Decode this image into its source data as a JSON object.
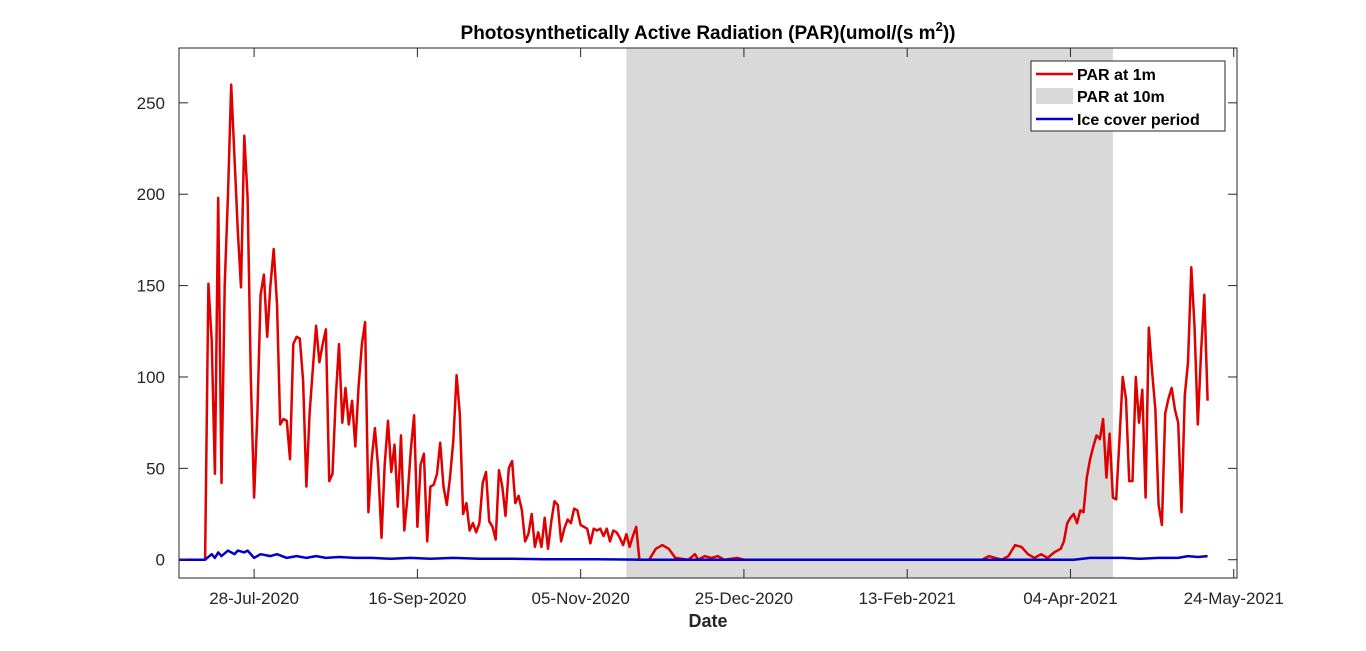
{
  "chart_data": {
    "type": "line",
    "title": "Photosynthetically Active Radiation (PAR)(umol/(s m",
    "title_superscript": "2",
    "title_suffix": "))",
    "xlabel": "Date",
    "ylabel": "",
    "x_ticks": [
      "28-Jul-2020",
      "16-Sep-2020",
      "05-Nov-2020",
      "25-Dec-2020",
      "13-Feb-2021",
      "04-Apr-2021",
      "24-May-2021"
    ],
    "xlim": [
      "2020-07-05",
      "2021-05-25"
    ],
    "ylim": [
      -10,
      280
    ],
    "y_ticks": [
      0,
      50,
      100,
      150,
      200,
      250
    ],
    "grid": false,
    "legend": {
      "placement": "top-right",
      "entries": [
        "PAR at 1m",
        "PAR at 10m",
        "Ice cover period"
      ]
    },
    "colors": {
      "par_1m": "#e00000",
      "par_10m": "#d9d9d9",
      "ice_cover": "#0000cc",
      "axis": "#262626"
    },
    "shaded_period": {
      "start": "2020-11-19",
      "end": "2021-04-17",
      "fill": "#d9d9d9"
    },
    "series": [
      {
        "name": "PAR at 1m",
        "color": "#e00000",
        "points": [
          [
            "2020-07-13",
            0
          ],
          [
            "2020-07-14",
            151
          ],
          [
            "2020-07-15",
            120
          ],
          [
            "2020-07-16",
            47
          ],
          [
            "2020-07-17",
            198
          ],
          [
            "2020-07-18",
            42
          ],
          [
            "2020-07-19",
            150
          ],
          [
            "2020-07-20",
            200
          ],
          [
            "2020-07-21",
            260
          ],
          [
            "2020-07-22",
            220
          ],
          [
            "2020-07-23",
            180
          ],
          [
            "2020-07-24",
            149
          ],
          [
            "2020-07-25",
            232
          ],
          [
            "2020-07-26",
            198
          ],
          [
            "2020-07-27",
            100
          ],
          [
            "2020-07-28",
            34
          ],
          [
            "2020-07-29",
            80
          ],
          [
            "2020-07-30",
            145
          ],
          [
            "2020-07-31",
            156
          ],
          [
            "2020-08-01",
            122
          ],
          [
            "2020-08-02",
            150
          ],
          [
            "2020-08-03",
            170
          ],
          [
            "2020-08-04",
            140
          ],
          [
            "2020-08-05",
            74
          ],
          [
            "2020-08-06",
            77
          ],
          [
            "2020-08-07",
            76
          ],
          [
            "2020-08-08",
            55
          ],
          [
            "2020-08-09",
            118
          ],
          [
            "2020-08-10",
            122
          ],
          [
            "2020-08-11",
            121
          ],
          [
            "2020-08-12",
            98
          ],
          [
            "2020-08-13",
            40
          ],
          [
            "2020-08-14",
            80
          ],
          [
            "2020-08-15",
            105
          ],
          [
            "2020-08-16",
            128
          ],
          [
            "2020-08-17",
            108
          ],
          [
            "2020-08-18",
            118
          ],
          [
            "2020-08-19",
            126
          ],
          [
            "2020-08-20",
            43
          ],
          [
            "2020-08-21",
            47
          ],
          [
            "2020-08-22",
            88
          ],
          [
            "2020-08-23",
            118
          ],
          [
            "2020-08-24",
            75
          ],
          [
            "2020-08-25",
            94
          ],
          [
            "2020-08-26",
            74
          ],
          [
            "2020-08-27",
            87
          ],
          [
            "2020-08-28",
            62
          ],
          [
            "2020-08-29",
            95
          ],
          [
            "2020-08-30",
            118
          ],
          [
            "2020-08-31",
            130
          ],
          [
            "2020-09-01",
            26
          ],
          [
            "2020-09-02",
            55
          ],
          [
            "2020-09-03",
            72
          ],
          [
            "2020-09-04",
            50
          ],
          [
            "2020-09-05",
            12
          ],
          [
            "2020-09-06",
            52
          ],
          [
            "2020-09-07",
            76
          ],
          [
            "2020-09-08",
            48
          ],
          [
            "2020-09-09",
            63
          ],
          [
            "2020-09-10",
            29
          ],
          [
            "2020-09-11",
            68
          ],
          [
            "2020-09-12",
            16
          ],
          [
            "2020-09-13",
            35
          ],
          [
            "2020-09-14",
            60
          ],
          [
            "2020-09-15",
            79
          ],
          [
            "2020-09-16",
            18
          ],
          [
            "2020-09-17",
            52
          ],
          [
            "2020-09-18",
            58
          ],
          [
            "2020-09-19",
            10
          ],
          [
            "2020-09-20",
            40
          ],
          [
            "2020-09-21",
            41
          ],
          [
            "2020-09-22",
            47
          ],
          [
            "2020-09-23",
            64
          ],
          [
            "2020-09-24",
            40
          ],
          [
            "2020-09-25",
            30
          ],
          [
            "2020-09-26",
            45
          ],
          [
            "2020-09-27",
            65
          ],
          [
            "2020-09-28",
            101
          ],
          [
            "2020-09-29",
            80
          ],
          [
            "2020-09-30",
            25
          ],
          [
            "2020-10-01",
            31
          ],
          [
            "2020-10-02",
            16
          ],
          [
            "2020-10-03",
            20
          ],
          [
            "2020-10-04",
            15
          ],
          [
            "2020-10-05",
            20
          ],
          [
            "2020-10-06",
            42
          ],
          [
            "2020-10-07",
            48
          ],
          [
            "2020-10-08",
            21
          ],
          [
            "2020-10-09",
            18
          ],
          [
            "2020-10-10",
            11
          ],
          [
            "2020-10-11",
            49
          ],
          [
            "2020-10-12",
            40
          ],
          [
            "2020-10-13",
            24
          ],
          [
            "2020-10-14",
            50
          ],
          [
            "2020-10-15",
            54
          ],
          [
            "2020-10-16",
            31
          ],
          [
            "2020-10-17",
            35
          ],
          [
            "2020-10-18",
            27
          ],
          [
            "2020-10-19",
            10
          ],
          [
            "2020-10-20",
            14
          ],
          [
            "2020-10-21",
            25
          ],
          [
            "2020-10-22",
            7
          ],
          [
            "2020-10-23",
            15
          ],
          [
            "2020-10-24",
            7
          ],
          [
            "2020-10-25",
            23
          ],
          [
            "2020-10-26",
            6
          ],
          [
            "2020-10-27",
            21
          ],
          [
            "2020-10-28",
            32
          ],
          [
            "2020-10-29",
            30
          ],
          [
            "2020-10-30",
            10
          ],
          [
            "2020-10-31",
            17
          ],
          [
            "2020-11-01",
            22
          ],
          [
            "2020-11-02",
            20
          ],
          [
            "2020-11-03",
            28
          ],
          [
            "2020-11-04",
            27
          ],
          [
            "2020-11-05",
            19
          ],
          [
            "2020-11-06",
            18
          ],
          [
            "2020-11-07",
            17
          ],
          [
            "2020-11-08",
            9
          ],
          [
            "2020-11-09",
            17
          ],
          [
            "2020-11-10",
            16
          ],
          [
            "2020-11-11",
            17
          ],
          [
            "2020-11-12",
            13
          ],
          [
            "2020-11-13",
            17
          ],
          [
            "2020-11-14",
            10
          ],
          [
            "2020-11-15",
            16
          ],
          [
            "2020-11-16",
            15
          ],
          [
            "2020-11-17",
            12
          ],
          [
            "2020-11-18",
            8
          ],
          [
            "2020-11-19",
            14
          ],
          [
            "2020-11-20",
            7
          ],
          [
            "2020-11-21",
            13
          ],
          [
            "2020-11-22",
            18
          ],
          [
            "2020-11-23",
            0
          ],
          [
            "2020-11-26",
            0
          ],
          [
            "2020-11-28",
            6
          ],
          [
            "2020-11-30",
            8
          ],
          [
            "2020-12-02",
            6
          ],
          [
            "2020-12-04",
            1
          ],
          [
            "2020-12-08",
            0
          ],
          [
            "2020-12-10",
            3
          ],
          [
            "2020-12-11",
            0
          ],
          [
            "2020-12-13",
            2
          ],
          [
            "2020-12-15",
            1
          ],
          [
            "2020-12-17",
            2
          ],
          [
            "2020-12-19",
            0
          ],
          [
            "2020-12-23",
            1
          ],
          [
            "2020-12-25",
            0
          ],
          [
            "2021-03-08",
            0
          ],
          [
            "2021-03-10",
            2
          ],
          [
            "2021-03-12",
            1
          ],
          [
            "2021-03-14",
            0
          ],
          [
            "2021-03-16",
            2
          ],
          [
            "2021-03-18",
            8
          ],
          [
            "2021-03-20",
            7
          ],
          [
            "2021-03-22",
            3
          ],
          [
            "2021-03-24",
            1
          ],
          [
            "2021-03-26",
            3
          ],
          [
            "2021-03-28",
            1
          ],
          [
            "2021-03-30",
            4
          ],
          [
            "2021-04-01",
            6
          ],
          [
            "2021-04-02",
            10
          ],
          [
            "2021-04-03",
            20
          ],
          [
            "2021-04-04",
            23
          ],
          [
            "2021-04-05",
            25
          ],
          [
            "2021-04-06",
            20
          ],
          [
            "2021-04-07",
            27
          ],
          [
            "2021-04-08",
            26
          ],
          [
            "2021-04-09",
            45
          ],
          [
            "2021-04-10",
            55
          ],
          [
            "2021-04-11",
            62
          ],
          [
            "2021-04-12",
            68
          ],
          [
            "2021-04-13",
            66
          ],
          [
            "2021-04-14",
            77
          ],
          [
            "2021-04-15",
            45
          ],
          [
            "2021-04-16",
            69
          ],
          [
            "2021-04-17",
            34
          ],
          [
            "2021-04-18",
            33
          ],
          [
            "2021-04-19",
            65
          ],
          [
            "2021-04-20",
            100
          ],
          [
            "2021-04-21",
            88
          ],
          [
            "2021-04-22",
            43
          ],
          [
            "2021-04-23",
            43
          ],
          [
            "2021-04-24",
            100
          ],
          [
            "2021-04-25",
            75
          ],
          [
            "2021-04-26",
            93
          ],
          [
            "2021-04-27",
            34
          ],
          [
            "2021-04-28",
            127
          ],
          [
            "2021-04-29",
            103
          ],
          [
            "2021-04-30",
            82
          ],
          [
            "2021-05-01",
            30
          ],
          [
            "2021-05-02",
            19
          ],
          [
            "2021-05-03",
            80
          ],
          [
            "2021-05-04",
            88
          ],
          [
            "2021-05-05",
            94
          ],
          [
            "2021-05-06",
            82
          ],
          [
            "2021-05-07",
            75
          ],
          [
            "2021-05-08",
            26
          ],
          [
            "2021-05-09",
            90
          ],
          [
            "2021-05-10",
            108
          ],
          [
            "2021-05-11",
            160
          ],
          [
            "2021-05-12",
            128
          ],
          [
            "2021-05-13",
            74
          ],
          [
            "2021-05-14",
            114
          ],
          [
            "2021-05-15",
            145
          ],
          [
            "2021-05-16",
            87
          ]
        ]
      },
      {
        "name": "Ice cover period",
        "color": "#0000cc",
        "points": [
          [
            "2020-07-05",
            0
          ],
          [
            "2020-07-13",
            0
          ],
          [
            "2020-07-15",
            3
          ],
          [
            "2020-07-16",
            1
          ],
          [
            "2020-07-17",
            4
          ],
          [
            "2020-07-18",
            2
          ],
          [
            "2020-07-20",
            5
          ],
          [
            "2020-07-22",
            3
          ],
          [
            "2020-07-23",
            5
          ],
          [
            "2020-07-25",
            4
          ],
          [
            "2020-07-26",
            5
          ],
          [
            "2020-07-28",
            1
          ],
          [
            "2020-07-30",
            3
          ],
          [
            "2020-08-02",
            2
          ],
          [
            "2020-08-04",
            3
          ],
          [
            "2020-08-07",
            1
          ],
          [
            "2020-08-10",
            2
          ],
          [
            "2020-08-13",
            1
          ],
          [
            "2020-08-16",
            2
          ],
          [
            "2020-08-19",
            1
          ],
          [
            "2020-08-23",
            1.5
          ],
          [
            "2020-08-28",
            1
          ],
          [
            "2020-09-02",
            1
          ],
          [
            "2020-09-08",
            0.5
          ],
          [
            "2020-09-14",
            1
          ],
          [
            "2020-09-20",
            0.5
          ],
          [
            "2020-09-27",
            1
          ],
          [
            "2020-10-05",
            0.5
          ],
          [
            "2020-10-15",
            0.5
          ],
          [
            "2020-10-25",
            0.3
          ],
          [
            "2020-11-10",
            0.3
          ],
          [
            "2020-11-23",
            0
          ],
          [
            "2021-04-05",
            0
          ],
          [
            "2021-04-10",
            1
          ],
          [
            "2021-04-16",
            1
          ],
          [
            "2021-04-20",
            1
          ],
          [
            "2021-04-25",
            0.5
          ],
          [
            "2021-05-01",
            1
          ],
          [
            "2021-05-07",
            1
          ],
          [
            "2021-05-10",
            2
          ],
          [
            "2021-05-13",
            1.5
          ],
          [
            "2021-05-16",
            2
          ]
        ]
      }
    ]
  }
}
